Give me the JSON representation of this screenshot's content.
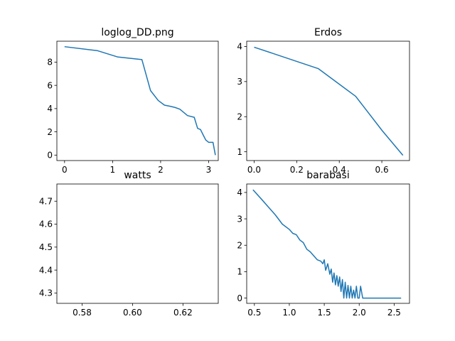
{
  "colors": {
    "line": "#1f77b4",
    "axes": "#000000",
    "background": "#ffffff"
  },
  "chart_data": [
    {
      "type": "line",
      "title": "loglog_DD.png",
      "xlim": [
        -0.16,
        3.2
      ],
      "ylim": [
        -0.47,
        9.8
      ],
      "xticks": [
        0,
        1,
        2,
        3
      ],
      "yticks": [
        0,
        2,
        4,
        6,
        8
      ],
      "series": [
        {
          "x": [
            0.0,
            0.69,
            1.1,
            1.61,
            1.79,
            1.95,
            2.08,
            2.2,
            2.3,
            2.4,
            2.56,
            2.7,
            2.77,
            2.83,
            2.89,
            2.94,
            3.0,
            3.09,
            3.14
          ],
          "y": [
            9.33,
            8.98,
            8.45,
            8.22,
            5.55,
            4.7,
            4.3,
            4.2,
            4.1,
            3.95,
            3.4,
            3.25,
            2.3,
            2.2,
            1.7,
            1.3,
            1.1,
            1.1,
            0.0
          ]
        }
      ]
    },
    {
      "type": "line",
      "title": "Erdos",
      "xlim": [
        -0.035,
        0.73
      ],
      "ylim": [
        0.75,
        4.15
      ],
      "xticks": [
        0.0,
        0.2,
        0.4,
        0.6
      ],
      "yticks": [
        1,
        2,
        3,
        4
      ],
      "series": [
        {
          "x": [
            0.0,
            0.301,
            0.477,
            0.602,
            0.699
          ],
          "y": [
            3.98,
            3.37,
            2.58,
            1.6,
            0.9
          ]
        }
      ]
    },
    {
      "type": "line",
      "title": "watts",
      "xlim": [
        0.57,
        0.634
      ],
      "ylim": [
        4.255,
        4.775
      ],
      "xticks": [
        0.58,
        0.6,
        0.62
      ],
      "yticks": [
        4.3,
        4.4,
        4.5,
        4.6,
        4.7
      ],
      "series": []
    },
    {
      "type": "line",
      "title": "barabasi",
      "xlim": [
        0.39,
        2.72
      ],
      "ylim": [
        -0.2,
        4.32
      ],
      "xticks": [
        0.5,
        1.0,
        1.5,
        2.0,
        2.5
      ],
      "yticks": [
        0,
        1,
        2,
        3,
        4
      ],
      "series": [
        {
          "x": [
            0.48,
            0.6,
            0.7,
            0.8,
            0.9,
            1.0,
            1.05,
            1.1,
            1.15,
            1.2,
            1.25,
            1.3,
            1.35,
            1.4,
            1.45,
            1.48,
            1.5,
            1.52,
            1.55,
            1.58,
            1.6,
            1.62,
            1.64,
            1.66,
            1.68,
            1.7,
            1.72,
            1.74,
            1.76,
            1.78,
            1.8,
            1.82,
            1.84,
            1.86,
            1.88,
            1.9,
            1.92,
            1.94,
            1.96,
            1.98,
            2.0,
            2.02,
            2.05,
            2.2,
            2.4,
            2.6
          ],
          "y": [
            4.1,
            3.75,
            3.45,
            3.15,
            2.8,
            2.6,
            2.45,
            2.4,
            2.2,
            2.1,
            1.85,
            1.75,
            1.6,
            1.45,
            1.4,
            1.3,
            1.45,
            1.05,
            1.3,
            0.9,
            1.1,
            0.6,
            0.95,
            0.5,
            0.85,
            0.45,
            0.8,
            0.25,
            0.7,
            0.0,
            0.6,
            0.0,
            0.48,
            0.0,
            0.45,
            0.0,
            0.3,
            0.0,
            0.45,
            0.0,
            0.0,
            0.45,
            0.0,
            0.0,
            0.0,
            0.0
          ]
        }
      ]
    }
  ]
}
